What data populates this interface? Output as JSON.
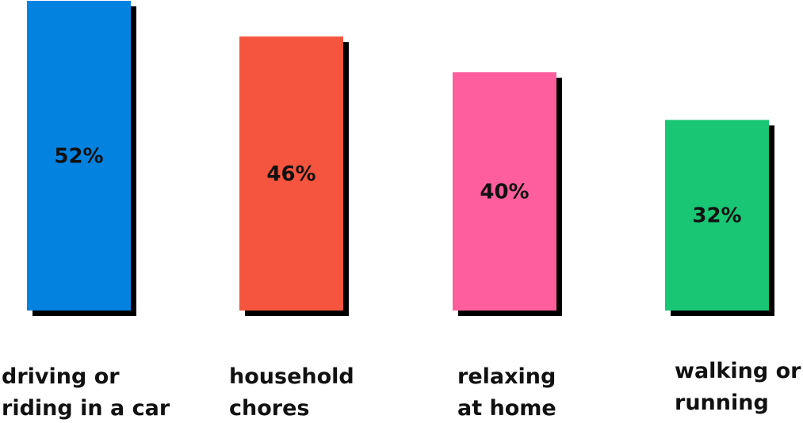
{
  "chart_data": {
    "type": "bar",
    "categories": [
      [
        "driving or",
        "riding in a car"
      ],
      [
        "household",
        "chores"
      ],
      [
        "relaxing",
        "at home"
      ],
      [
        "walking or",
        "running"
      ]
    ],
    "values": [
      52,
      46,
      40,
      32
    ],
    "value_labels": [
      "52%",
      "46%",
      "40%",
      "32%"
    ],
    "colors": [
      "#0382E0",
      "#F5553E",
      "#FF5E9C",
      "#18C673"
    ],
    "shadow_color": "#000000",
    "title": "",
    "xlabel": "",
    "ylabel": "",
    "ylim": [
      0,
      52
    ],
    "grid": false,
    "legend": "none"
  }
}
